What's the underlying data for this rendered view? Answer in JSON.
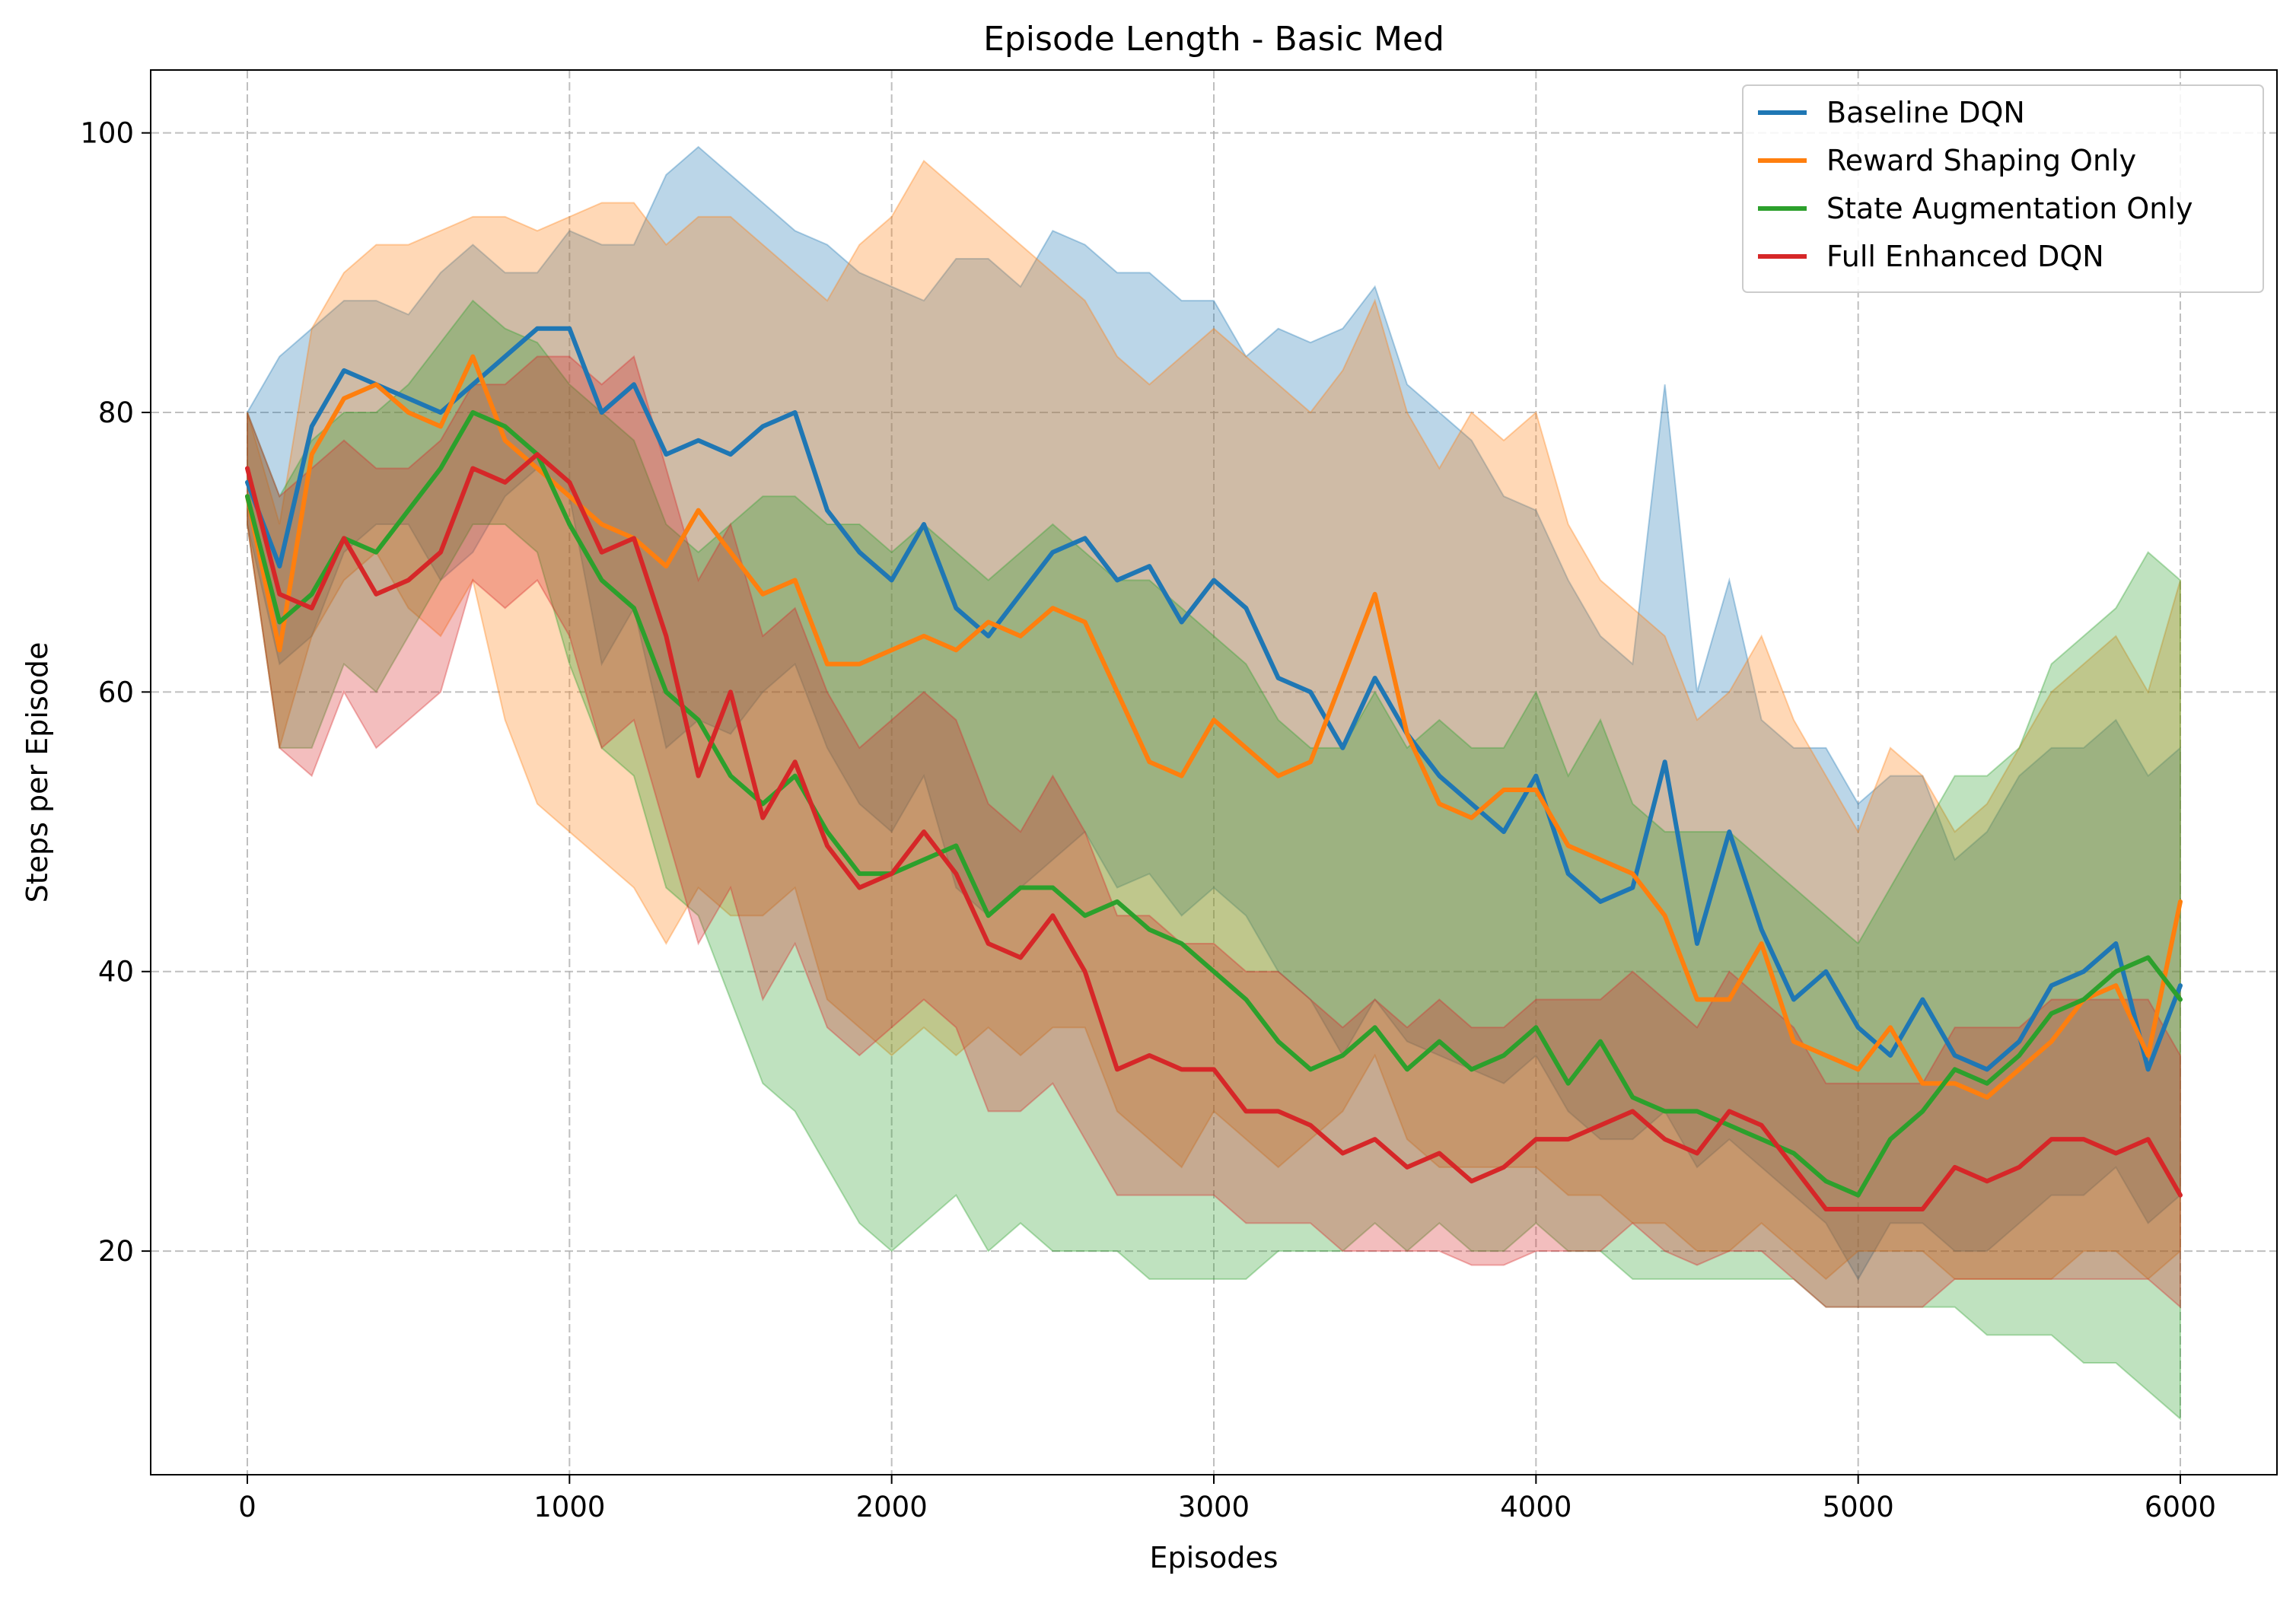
{
  "chart_data": {
    "type": "line",
    "title": "Episode Length - Basic Med",
    "xlabel": "Episodes",
    "ylabel": "Steps per Episode",
    "xlim": [
      -300,
      6300
    ],
    "ylim": [
      4,
      104.5
    ],
    "xticks": [
      0,
      1000,
      2000,
      3000,
      4000,
      5000,
      6000
    ],
    "yticks": [
      20,
      40,
      60,
      80,
      100
    ],
    "grid": true,
    "legend_position": "top-right",
    "x": [
      0,
      100,
      200,
      300,
      400,
      500,
      600,
      700,
      800,
      900,
      1000,
      1100,
      1200,
      1300,
      1400,
      1500,
      1600,
      1700,
      1800,
      1900,
      2000,
      2100,
      2200,
      2300,
      2400,
      2500,
      2600,
      2700,
      2800,
      2900,
      3000,
      3100,
      3200,
      3300,
      3400,
      3500,
      3600,
      3700,
      3800,
      3900,
      4000,
      4100,
      4200,
      4300,
      4400,
      4500,
      4600,
      4700,
      4800,
      4900,
      5000,
      5100,
      5200,
      5300,
      5400,
      5500,
      5600,
      5700,
      5800,
      5900,
      6000
    ],
    "series": [
      {
        "name": "Baseline DQN",
        "color": "#1f77b4",
        "mean": [
          75,
          69,
          79,
          83,
          82,
          81,
          80,
          82,
          84,
          86,
          86,
          80,
          82,
          77,
          78,
          77,
          79,
          80,
          73,
          70,
          68,
          72,
          66,
          64,
          67,
          70,
          71,
          68,
          69,
          65,
          68,
          66,
          61,
          60,
          56,
          61,
          57,
          54,
          52,
          50,
          54,
          47,
          45,
          46,
          55,
          42,
          50,
          43,
          38,
          40,
          36,
          34,
          38,
          34,
          33,
          35,
          39,
          40,
          42,
          33,
          39
        ],
        "upper": [
          80,
          84,
          86,
          88,
          88,
          87,
          90,
          92,
          90,
          90,
          93,
          92,
          92,
          97,
          99,
          97,
          95,
          93,
          92,
          90,
          89,
          88,
          91,
          91,
          89,
          93,
          92,
          90,
          90,
          88,
          88,
          84,
          86,
          85,
          86,
          89,
          82,
          80,
          78,
          74,
          73,
          68,
          64,
          62,
          82,
          60,
          68,
          58,
          56,
          56,
          52,
          54,
          54,
          48,
          50,
          54,
          56,
          56,
          58,
          54,
          56
        ],
        "lower": [
          72,
          62,
          64,
          70,
          72,
          72,
          68,
          70,
          74,
          76,
          74,
          62,
          66,
          56,
          58,
          57,
          60,
          62,
          56,
          52,
          50,
          54,
          46,
          44,
          46,
          48,
          50,
          46,
          47,
          44,
          46,
          44,
          40,
          38,
          34,
          38,
          35,
          34,
          33,
          32,
          34,
          30,
          28,
          28,
          30,
          26,
          28,
          26,
          24,
          22,
          18,
          22,
          22,
          20,
          20,
          22,
          24,
          24,
          26,
          22,
          24
        ]
      },
      {
        "name": "Reward Shaping Only",
        "color": "#ff7f0e",
        "mean": [
          74,
          63,
          77,
          81,
          82,
          80,
          79,
          84,
          78,
          76,
          74,
          72,
          71,
          69,
          73,
          70,
          67,
          68,
          62,
          62,
          63,
          64,
          63,
          65,
          64,
          66,
          65,
          60,
          55,
          54,
          58,
          56,
          54,
          55,
          61,
          67,
          57,
          52,
          51,
          53,
          53,
          49,
          48,
          47,
          44,
          38,
          38,
          42,
          35,
          34,
          33,
          36,
          32,
          32,
          31,
          33,
          35,
          38,
          39,
          34,
          45
        ],
        "upper": [
          80,
          72,
          86,
          90,
          92,
          92,
          93,
          94,
          94,
          93,
          94,
          95,
          95,
          92,
          94,
          94,
          92,
          90,
          88,
          92,
          94,
          98,
          96,
          94,
          92,
          90,
          88,
          84,
          82,
          84,
          86,
          84,
          82,
          80,
          83,
          88,
          80,
          76,
          80,
          78,
          80,
          72,
          68,
          66,
          64,
          58,
          60,
          64,
          58,
          54,
          50,
          56,
          54,
          50,
          52,
          56,
          60,
          62,
          64,
          60,
          68
        ],
        "lower": [
          72,
          56,
          64,
          68,
          70,
          66,
          64,
          68,
          58,
          52,
          50,
          48,
          46,
          42,
          46,
          44,
          44,
          46,
          38,
          36,
          34,
          36,
          34,
          36,
          34,
          36,
          36,
          30,
          28,
          26,
          30,
          28,
          26,
          28,
          30,
          34,
          28,
          26,
          26,
          26,
          26,
          24,
          24,
          22,
          22,
          20,
          20,
          22,
          20,
          18,
          20,
          20,
          20,
          18,
          18,
          18,
          18,
          20,
          20,
          18,
          20
        ]
      },
      {
        "name": "State Augmentation Only",
        "color": "#2ca02c",
        "mean": [
          74,
          65,
          67,
          71,
          70,
          73,
          76,
          80,
          79,
          77,
          72,
          68,
          66,
          60,
          58,
          54,
          52,
          54,
          50,
          47,
          47,
          48,
          49,
          44,
          46,
          46,
          44,
          45,
          43,
          42,
          40,
          38,
          35,
          33,
          34,
          36,
          33,
          35,
          33,
          34,
          36,
          32,
          35,
          31,
          30,
          30,
          29,
          28,
          27,
          25,
          24,
          28,
          30,
          33,
          32,
          34,
          37,
          38,
          40,
          41,
          38
        ],
        "upper": [
          80,
          74,
          78,
          80,
          80,
          82,
          85,
          88,
          86,
          85,
          82,
          80,
          78,
          72,
          70,
          72,
          74,
          74,
          72,
          72,
          70,
          72,
          70,
          68,
          70,
          72,
          70,
          68,
          68,
          66,
          64,
          62,
          58,
          56,
          56,
          60,
          56,
          58,
          56,
          56,
          60,
          54,
          58,
          52,
          50,
          50,
          50,
          48,
          46,
          44,
          42,
          46,
          50,
          54,
          54,
          56,
          62,
          64,
          66,
          70,
          68
        ],
        "lower": [
          72,
          56,
          56,
          62,
          60,
          64,
          68,
          72,
          72,
          70,
          62,
          56,
          54,
          46,
          44,
          38,
          32,
          30,
          26,
          22,
          20,
          22,
          24,
          20,
          22,
          20,
          20,
          20,
          18,
          18,
          18,
          18,
          20,
          20,
          20,
          22,
          20,
          22,
          20,
          20,
          22,
          20,
          20,
          18,
          18,
          18,
          18,
          18,
          18,
          16,
          16,
          16,
          16,
          16,
          14,
          14,
          14,
          12,
          12,
          10,
          8
        ]
      },
      {
        "name": "Full Enhanced DQN",
        "color": "#d62728",
        "mean": [
          76,
          67,
          66,
          71,
          67,
          68,
          70,
          76,
          75,
          77,
          75,
          70,
          71,
          64,
          54,
          60,
          51,
          55,
          49,
          46,
          47,
          50,
          47,
          42,
          41,
          44,
          40,
          33,
          34,
          33,
          33,
          30,
          30,
          29,
          27,
          28,
          26,
          27,
          25,
          26,
          28,
          28,
          29,
          30,
          28,
          27,
          30,
          29,
          26,
          23,
          23,
          23,
          23,
          26,
          25,
          26,
          28,
          28,
          27,
          28,
          24
        ],
        "upper": [
          80,
          74,
          76,
          78,
          76,
          76,
          78,
          82,
          82,
          84,
          84,
          82,
          84,
          76,
          68,
          72,
          64,
          66,
          60,
          56,
          58,
          60,
          58,
          52,
          50,
          54,
          50,
          44,
          44,
          42,
          42,
          40,
          40,
          38,
          36,
          38,
          36,
          38,
          36,
          36,
          38,
          38,
          38,
          40,
          38,
          36,
          40,
          38,
          36,
          32,
          32,
          32,
          32,
          36,
          36,
          36,
          38,
          38,
          38,
          38,
          34
        ],
        "lower": [
          72,
          56,
          54,
          60,
          56,
          58,
          60,
          68,
          66,
          68,
          64,
          56,
          58,
          50,
          42,
          46,
          38,
          42,
          36,
          34,
          36,
          38,
          36,
          30,
          30,
          32,
          28,
          24,
          24,
          24,
          24,
          22,
          22,
          22,
          20,
          20,
          20,
          20,
          19,
          19,
          20,
          20,
          20,
          22,
          20,
          19,
          20,
          20,
          18,
          16,
          16,
          16,
          16,
          18,
          18,
          18,
          18,
          18,
          18,
          18,
          16
        ]
      }
    ]
  }
}
